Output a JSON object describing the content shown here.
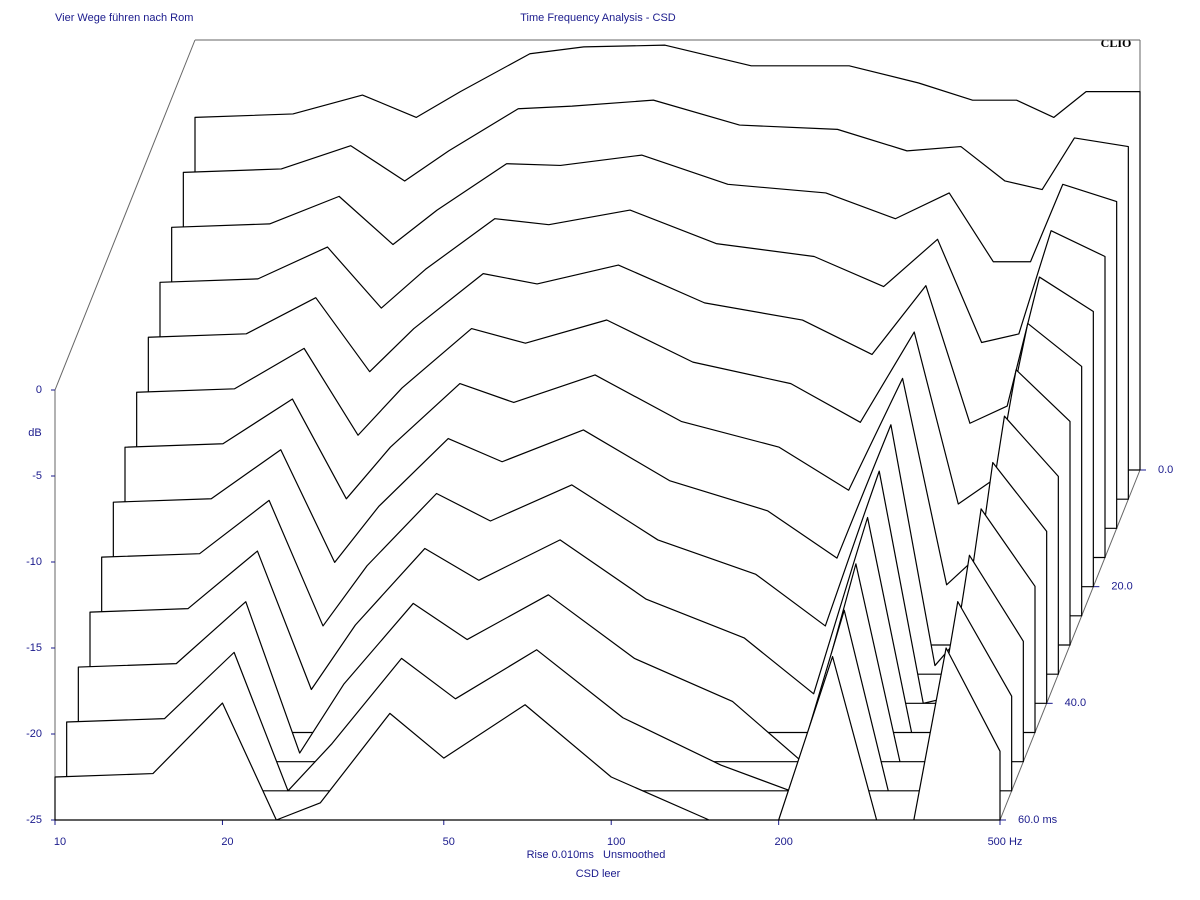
{
  "chart_data": {
    "type": "waterfall",
    "header_left": "Vier Wege führen nach Rom",
    "title": "Time Frequency Analysis - CSD",
    "brand": "CLIO",
    "y_label": "dB",
    "footer_line1": "Rise 0.010ms   Unsmoothed",
    "footer_line2": "CSD leer",
    "color": "#000000",
    "x_log": true,
    "xlim": [
      10,
      500
    ],
    "ylim": [
      -25,
      0
    ],
    "zlim": [
      0,
      60
    ],
    "xticks": [
      10,
      20,
      50,
      100,
      200,
      {
        "value": 500,
        "label": "500 Hz"
      }
    ],
    "yticks": [
      0,
      -5,
      -10,
      -15,
      -20,
      -25
    ],
    "zticks": [
      {
        "value": 0,
        "label": "0.0"
      },
      {
        "value": 20,
        "label": "20.0"
      },
      {
        "value": 40,
        "label": "40.0"
      },
      {
        "value": 60,
        "label": "60.0 ms"
      }
    ],
    "x": [
      10,
      15,
      20,
      25,
      30,
      40,
      50,
      70,
      100,
      150,
      200,
      250,
      300,
      350,
      400,
      500
    ],
    "z": [
      0,
      5,
      10,
      15,
      20,
      25,
      30,
      35,
      40,
      45,
      50,
      55,
      60
    ],
    "series": [
      {
        "values": [
          -4.5,
          -4.3,
          -3.2,
          -4.5,
          -3,
          -0.8,
          -0.4,
          -0.3,
          -1.5,
          -1.5,
          -2.5,
          -3.5,
          -3.5,
          -4.5,
          -3,
          -3
        ]
      },
      {
        "values": [
          -6,
          -5.8,
          -4.45,
          -6.5,
          -4.75,
          -2.3,
          -2.15,
          -1.8,
          -3.25,
          -3.5,
          -4.75,
          -4.5,
          -6.5,
          -7,
          -4,
          -4.5
        ]
      },
      {
        "values": [
          -7.5,
          -7.3,
          -5.7,
          -8.5,
          -6.5,
          -3.8,
          -3.9,
          -3.3,
          -5,
          -5.5,
          -7,
          -5.5,
          -9.5,
          -9.5,
          -5,
          -6
        ]
      },
      {
        "values": [
          -9,
          -8.8,
          -6.95,
          -10.5,
          -8.25,
          -5.3,
          -5.65,
          -4.8,
          -6.75,
          -7.5,
          -9.25,
          -6.5,
          -12.5,
          -12,
          -6,
          -7.5
        ]
      },
      {
        "values": [
          -10.5,
          -10.3,
          -8.2,
          -12.5,
          -10,
          -6.8,
          -7.4,
          -6.3,
          -8.5,
          -9.5,
          -11.5,
          -7.5,
          -15.5,
          -14.5,
          -7,
          -9
        ]
      },
      {
        "values": [
          -12,
          -11.8,
          -9.45,
          -14.5,
          -11.75,
          -8.3,
          -9.15,
          -7.8,
          -10.25,
          -11.5,
          -13.75,
          -8.5,
          -18.5,
          -17,
          -8,
          -10.5
        ]
      },
      {
        "values": [
          -13.5,
          -13.3,
          -10.7,
          -16.5,
          -13.5,
          -9.8,
          -10.9,
          -9.3,
          -12,
          -13.5,
          -16,
          -9.5,
          -21.5,
          -19.5,
          -9,
          -12
        ]
      },
      {
        "values": [
          -15,
          -14.8,
          -11.95,
          -18.5,
          -15.25,
          -11.3,
          -12.65,
          -10.8,
          -13.75,
          -15.5,
          -18.25,
          -10.5,
          -24.5,
          -22,
          -10,
          -13.5
        ]
      },
      {
        "values": [
          -16.5,
          -16.3,
          -13.2,
          -20.5,
          -17,
          -12.8,
          -14.4,
          -12.3,
          -15.5,
          -17.5,
          -20.5,
          -11.5,
          -25,
          -24.5,
          -11,
          -15
        ]
      },
      {
        "values": [
          -18,
          -17.8,
          -14.45,
          -22.5,
          -18.75,
          -14.3,
          -16.15,
          -13.8,
          -17.25,
          -19.5,
          -22.75,
          -12.5,
          -25,
          -25,
          -12,
          -16.5
        ]
      },
      {
        "values": [
          -19.5,
          -19.3,
          -15.7,
          -24.5,
          -20.5,
          -15.8,
          -17.9,
          -15.3,
          -19,
          -21.5,
          -25,
          -13.5,
          -25,
          -25,
          -13,
          -18
        ]
      },
      {
        "values": [
          -21,
          -20.8,
          -16.95,
          -25,
          -22.25,
          -17.3,
          -19.65,
          -16.8,
          -20.75,
          -23.5,
          -25,
          -14.5,
          -25,
          -25,
          -14,
          -19.5
        ]
      },
      {
        "values": [
          -22.5,
          -22.3,
          -18.2,
          -25,
          -24,
          -18.8,
          -21.4,
          -18.3,
          -22.5,
          -25,
          -25,
          -15.5,
          -25,
          -25,
          -15,
          -21
        ]
      }
    ]
  }
}
